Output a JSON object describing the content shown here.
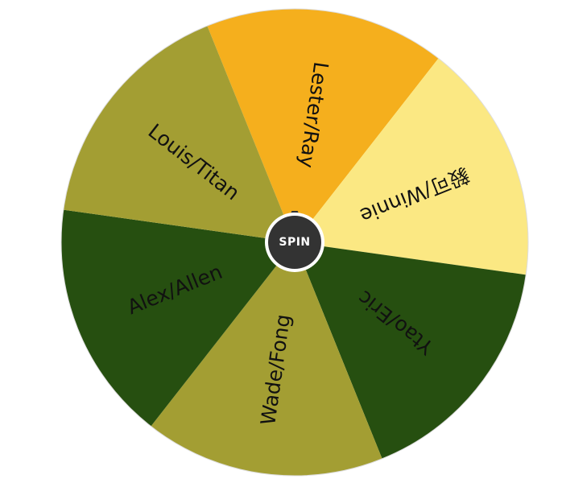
{
  "wheel": {
    "segments": [
      {
        "label": "Lester/Ray",
        "color": "#f5af1d",
        "text_color": "#111111"
      },
      {
        "label": "毅可/Winnie",
        "color": "#fbe883",
        "text_color": "#111111"
      },
      {
        "label": "Ytao/Eric",
        "color": "#264f10",
        "text_color": "#ffffff"
      },
      {
        "label": "Wade/Fong",
        "color": "#a39e33",
        "text_color": "#111111"
      },
      {
        "label": "Alex/Allen",
        "color": "#264f10",
        "text_color": "#ffffff"
      },
      {
        "label": "Louis/Titan",
        "color": "#a39e33",
        "text_color": "#111111"
      }
    ],
    "spin_label": "SPIN",
    "pointer_icon": "triangle-pointer-icon",
    "hub_color": "#333333",
    "border_color": "#dddddd"
  }
}
